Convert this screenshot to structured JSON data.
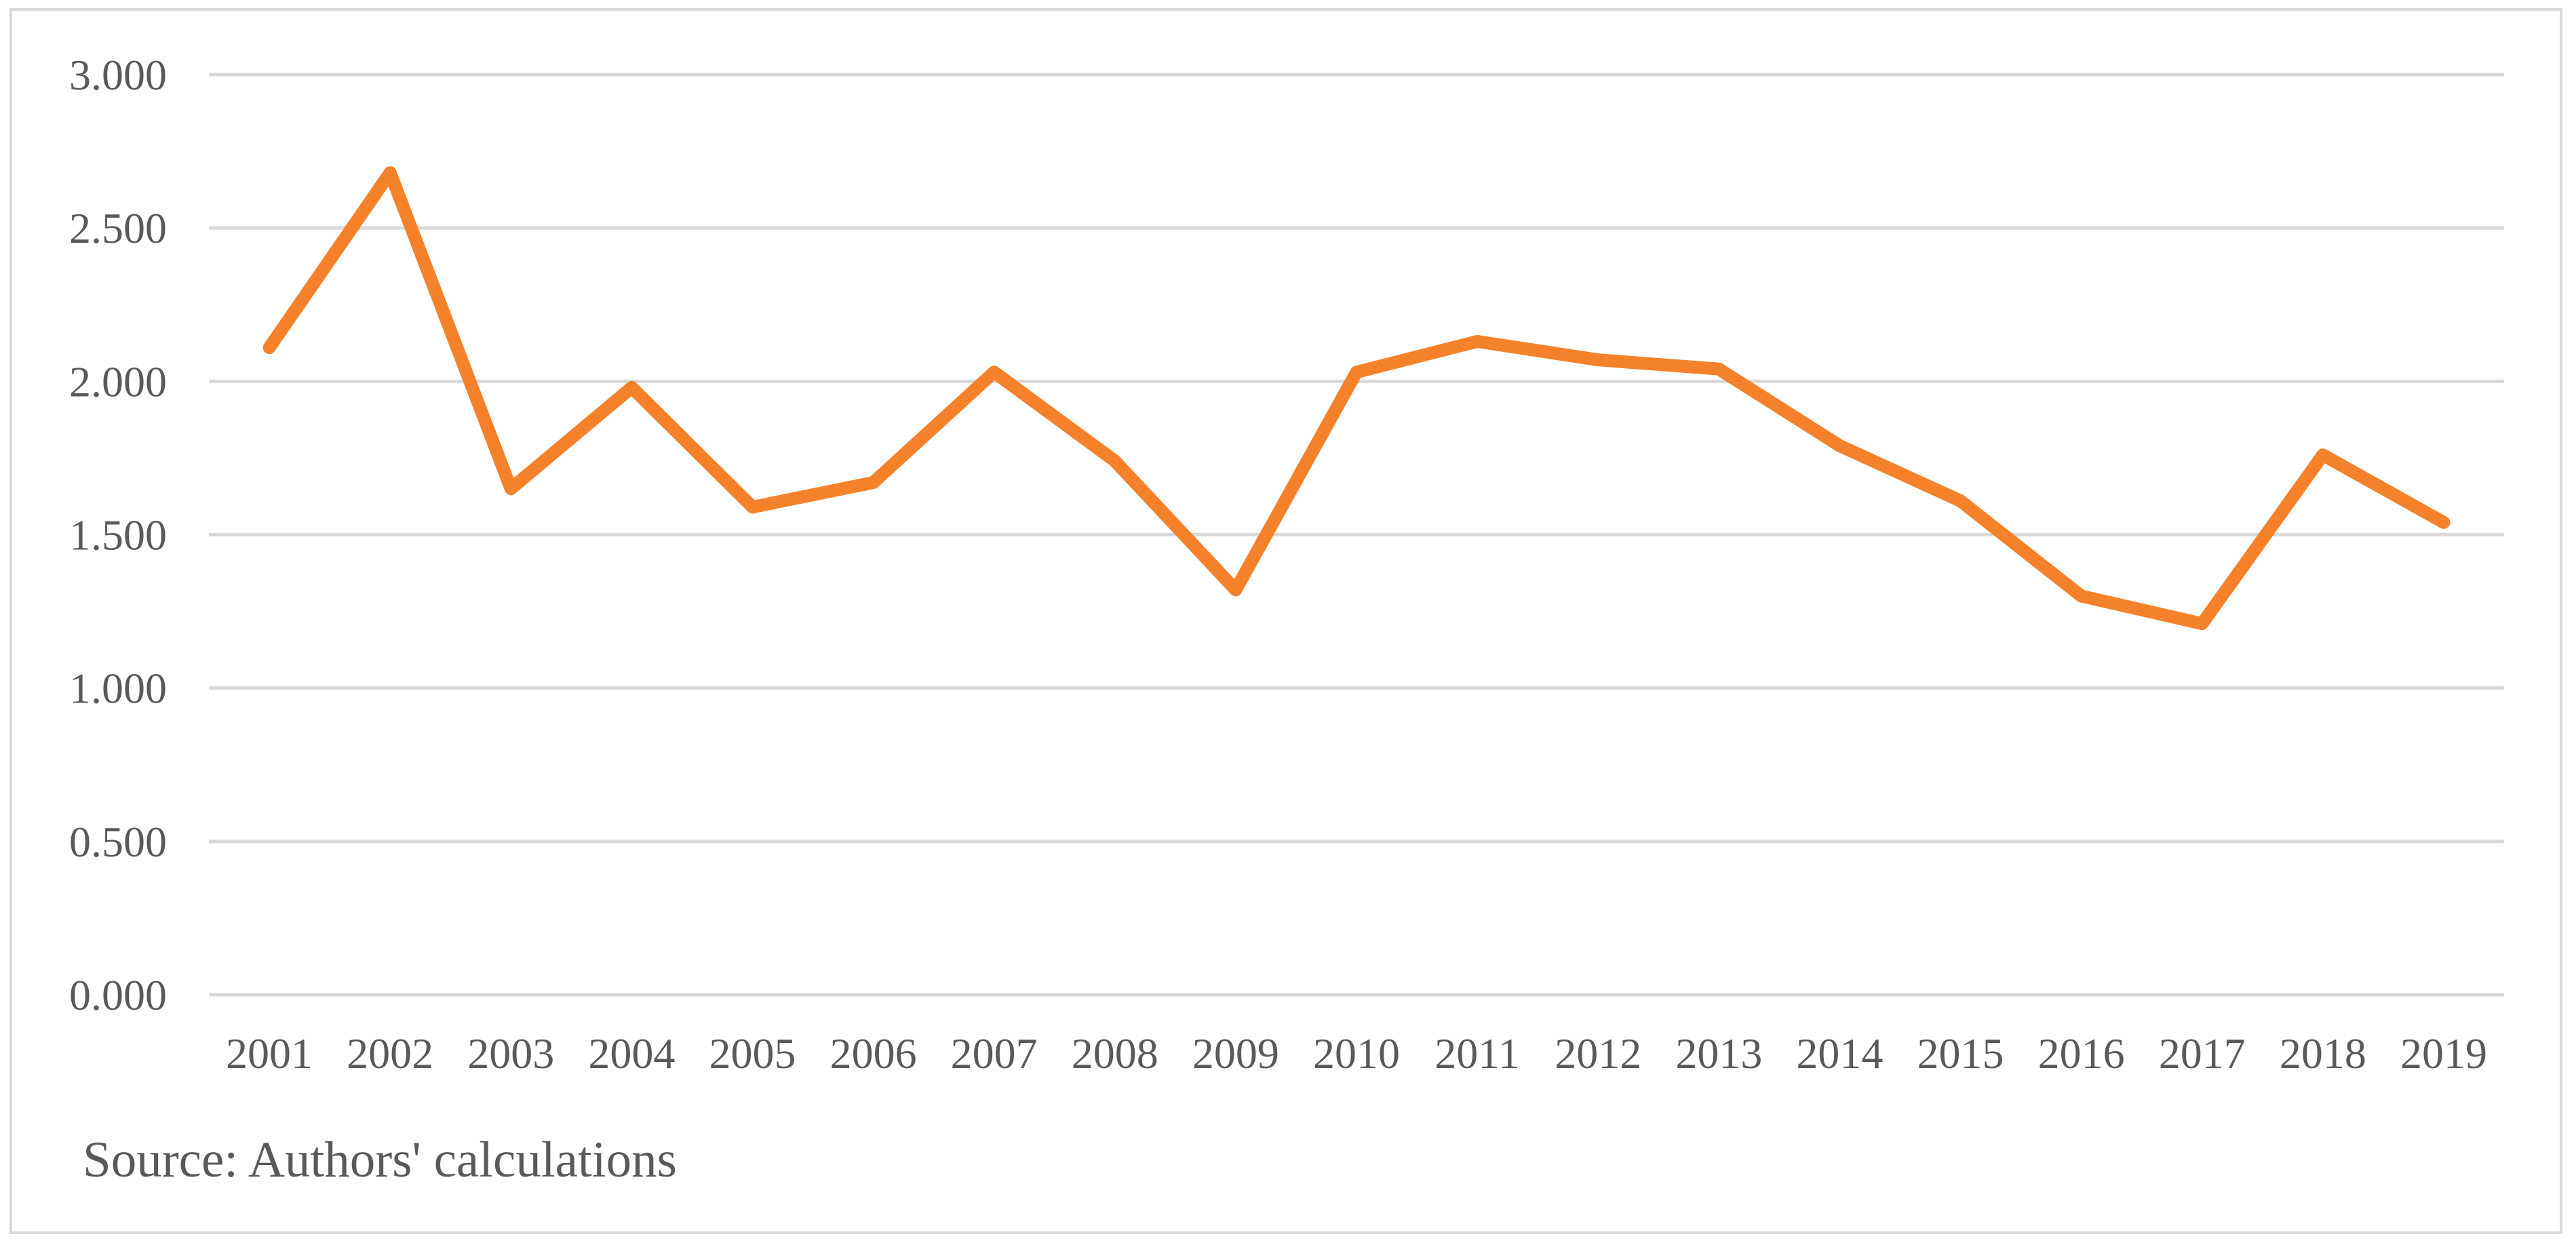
{
  "chart_data": {
    "type": "line",
    "title": "",
    "xlabel": "",
    "ylabel": "",
    "categories": [
      "2001",
      "2002",
      "2003",
      "2004",
      "2005",
      "2006",
      "2007",
      "2008",
      "2009",
      "2010",
      "2011",
      "2012",
      "2013",
      "2014",
      "2015",
      "2016",
      "2017",
      "2018",
      "2019"
    ],
    "series": [
      {
        "values": [
          2.11,
          2.68,
          1.65,
          1.98,
          1.59,
          1.67,
          2.03,
          1.74,
          1.32,
          2.03,
          2.13,
          2.07,
          2.04,
          1.79,
          1.61,
          1.3,
          1.21,
          1.76,
          1.54
        ],
        "color": "#f5812a"
      }
    ],
    "ylim": [
      0,
      3
    ],
    "yticks": [
      0,
      0.5,
      1,
      1.5,
      2,
      2.5,
      3
    ],
    "ytick_labels": [
      "0.000",
      "0.500",
      "1.000",
      "1.500",
      "2.000",
      "2.500",
      "3.000"
    ],
    "grid": true,
    "legend": "none",
    "source_note": "Source: Authors' calculations"
  }
}
